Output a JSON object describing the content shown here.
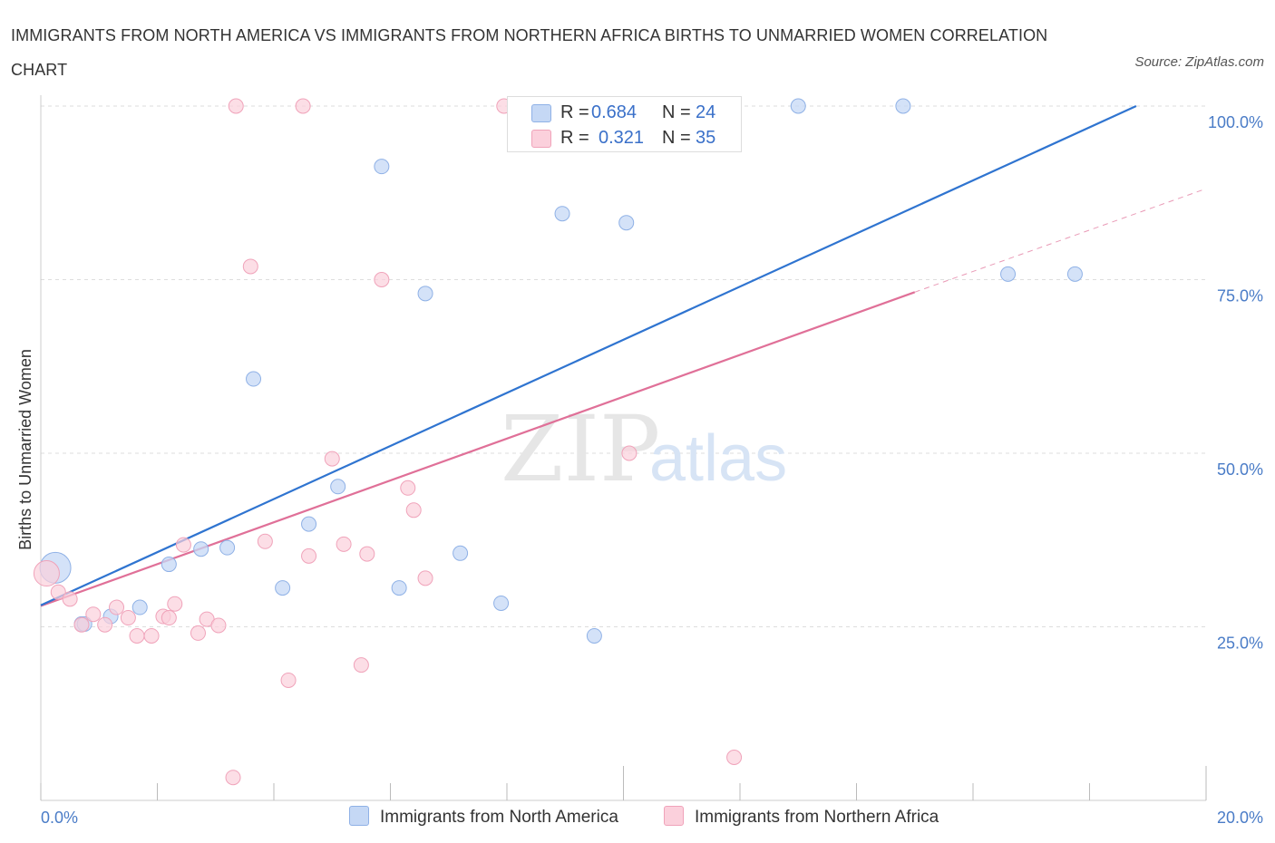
{
  "title": "IMMIGRANTS FROM NORTH AMERICA VS IMMIGRANTS FROM NORTHERN AFRICA BIRTHS TO UNMARRIED WOMEN CORRELATION CHART",
  "source": "Source: ZipAtlas.com",
  "watermark": {
    "zip": "ZIP",
    "atlas": "atlas"
  },
  "legend": {
    "r_label": "R =",
    "n_label": "N =",
    "series1": {
      "r": "0.684",
      "n": "24"
    },
    "series2": {
      "r": "0.321",
      "n": "35"
    }
  },
  "colors": {
    "series1_fill": "#c5d8f5",
    "series1_stroke": "#8fb1e6",
    "series1_line": "#2f74d0",
    "series2_fill": "#fbd0dc",
    "series2_stroke": "#f0a3ba",
    "series2_line": "#e07098",
    "tick_text": "#4a7cc7",
    "grid": "#dddddd"
  },
  "chart_data": {
    "type": "scatter",
    "title": "IMMIGRANTS FROM NORTH AMERICA VS IMMIGRANTS FROM NORTHERN AFRICA BIRTHS TO UNMARRIED WOMEN CORRELATION CHART",
    "xlabel": "",
    "ylabel": "Births to Unmarried Women",
    "xlim": [
      0,
      20
    ],
    "ylim": [
      0,
      100
    ],
    "x_tick_labels": [
      "0.0%",
      "20.0%"
    ],
    "y_ticks": [
      25,
      50,
      75,
      100
    ],
    "y_tick_labels": [
      "25.0%",
      "50.0%",
      "75.0%",
      "100.0%"
    ],
    "grid": true,
    "legend_position": "top-center",
    "series": [
      {
        "name": "Immigrants from North America",
        "r": 0.684,
        "n": 24,
        "trend": {
          "x": [
            0,
            18.8
          ],
          "y": [
            28.1,
            100
          ]
        },
        "points": [
          {
            "x": 0.25,
            "y": 33.5,
            "big": true
          },
          {
            "x": 0.7,
            "y": 25.4
          },
          {
            "x": 0.75,
            "y": 25.4
          },
          {
            "x": 1.2,
            "y": 26.5
          },
          {
            "x": 1.7,
            "y": 27.8
          },
          {
            "x": 2.2,
            "y": 34.0
          },
          {
            "x": 2.75,
            "y": 36.2
          },
          {
            "x": 3.2,
            "y": 36.4
          },
          {
            "x": 3.65,
            "y": 60.7
          },
          {
            "x": 4.15,
            "y": 30.6
          },
          {
            "x": 4.6,
            "y": 39.8
          },
          {
            "x": 5.1,
            "y": 45.2
          },
          {
            "x": 5.85,
            "y": 91.3
          },
          {
            "x": 6.15,
            "y": 30.6
          },
          {
            "x": 6.6,
            "y": 73.0
          },
          {
            "x": 7.2,
            "y": 35.6
          },
          {
            "x": 7.9,
            "y": 28.4
          },
          {
            "x": 8.95,
            "y": 84.5
          },
          {
            "x": 9.5,
            "y": 23.7
          },
          {
            "x": 10.05,
            "y": 83.2
          },
          {
            "x": 13.0,
            "y": 100
          },
          {
            "x": 14.8,
            "y": 100
          },
          {
            "x": 16.6,
            "y": 75.8
          },
          {
            "x": 17.75,
            "y": 75.8
          }
        ]
      },
      {
        "name": "Immigrants from Northern Africa",
        "r": 0.321,
        "n": 35,
        "trend": {
          "x": [
            0,
            15.0
          ],
          "y": [
            28.0,
            73.2
          ]
        },
        "trend_dashed": {
          "x": [
            15.0,
            20.0
          ],
          "y": [
            73.2,
            88.1
          ]
        },
        "points": [
          {
            "x": 0.1,
            "y": 32.7,
            "big": true
          },
          {
            "x": 0.3,
            "y": 30.0
          },
          {
            "x": 0.5,
            "y": 29.0
          },
          {
            "x": 0.7,
            "y": 25.3
          },
          {
            "x": 0.9,
            "y": 26.8
          },
          {
            "x": 1.1,
            "y": 25.3
          },
          {
            "x": 1.3,
            "y": 27.8
          },
          {
            "x": 1.5,
            "y": 26.3
          },
          {
            "x": 1.65,
            "y": 23.7
          },
          {
            "x": 1.9,
            "y": 23.7
          },
          {
            "x": 2.1,
            "y": 26.5
          },
          {
            "x": 2.3,
            "y": 28.3
          },
          {
            "x": 2.45,
            "y": 36.8
          },
          {
            "x": 2.7,
            "y": 24.1
          },
          {
            "x": 2.85,
            "y": 26.1
          },
          {
            "x": 3.05,
            "y": 25.2
          },
          {
            "x": 3.35,
            "y": 100
          },
          {
            "x": 3.6,
            "y": 76.9
          },
          {
            "x": 3.85,
            "y": 37.3
          },
          {
            "x": 4.25,
            "y": 17.3
          },
          {
            "x": 4.5,
            "y": 100
          },
          {
            "x": 4.6,
            "y": 35.2
          },
          {
            "x": 5.0,
            "y": 49.2
          },
          {
            "x": 5.2,
            "y": 36.9
          },
          {
            "x": 5.5,
            "y": 19.5
          },
          {
            "x": 5.6,
            "y": 35.5
          },
          {
            "x": 5.85,
            "y": 75.0
          },
          {
            "x": 6.3,
            "y": 45.0
          },
          {
            "x": 6.4,
            "y": 41.8
          },
          {
            "x": 6.6,
            "y": 32.0
          },
          {
            "x": 7.95,
            "y": 100
          },
          {
            "x": 10.1,
            "y": 50.0
          },
          {
            "x": 11.9,
            "y": 6.2
          },
          {
            "x": 3.3,
            "y": 3.3
          },
          {
            "x": 2.2,
            "y": 26.3
          }
        ]
      }
    ]
  }
}
